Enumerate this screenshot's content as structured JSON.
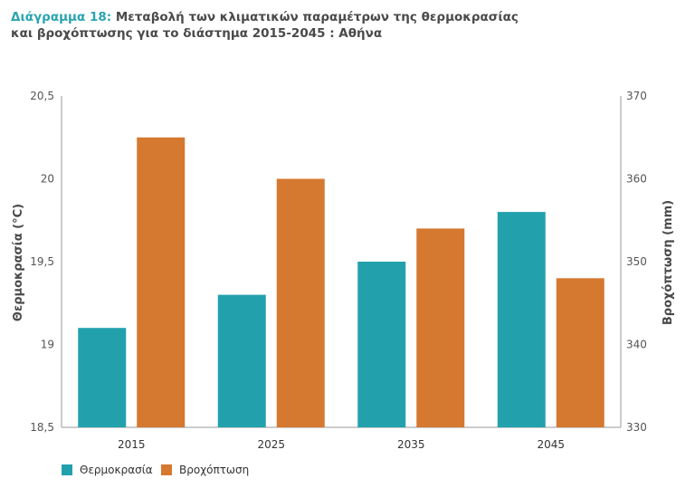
{
  "title": {
    "lead": "Διάγραμμα 18:",
    "line1_rest": "Μεταβολή των κλιματικών παραμέτρων της θερμοκρασίας",
    "line2": "και βροχόπτωσης για το διάστημα 2015-2045 : Αθήνα"
  },
  "colors": {
    "temperature": "#22a1ad",
    "precipitation": "#d57830",
    "title_accent": "#2aa4b0"
  },
  "chart_data": {
    "type": "bar",
    "categories": [
      "2015",
      "2025",
      "2035",
      "2045"
    ],
    "series": [
      {
        "name": "Θερμοκρασία",
        "axis": "left",
        "values": [
          19.1,
          19.3,
          19.5,
          19.8
        ]
      },
      {
        "name": "Βροχόπτωση",
        "axis": "right",
        "values": [
          365,
          360,
          354,
          348
        ]
      }
    ],
    "y_left": {
      "label": "Θερμοκρασία (°C)",
      "range": [
        18.5,
        20.5
      ],
      "ticks": [
        "18,5",
        "19",
        "19,5",
        "20",
        "20,5"
      ]
    },
    "y_right": {
      "label": "Βροχόπτωση (mm)",
      "range": [
        330,
        370
      ],
      "ticks": [
        "330",
        "340",
        "350",
        "360",
        "370"
      ]
    },
    "grid": false,
    "legend_position": "bottom-left"
  }
}
